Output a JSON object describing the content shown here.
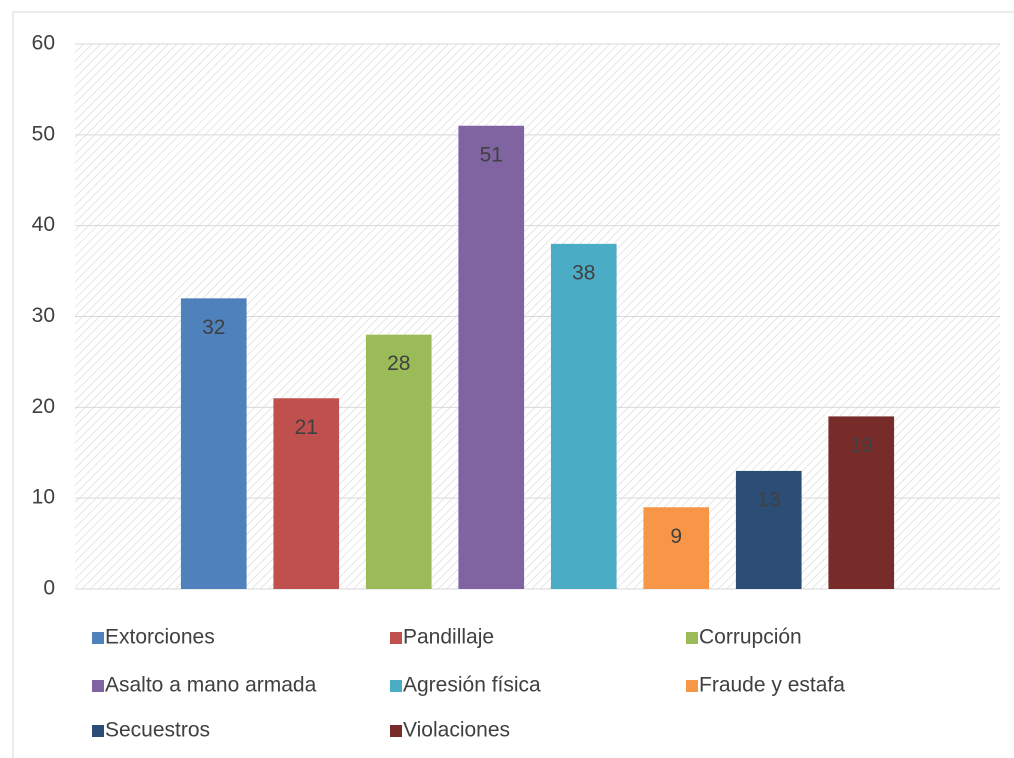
{
  "chart_data": {
    "type": "bar",
    "categories": [
      null
    ],
    "series": [
      {
        "name": "Extorciones",
        "color": "#4f81bd",
        "values": [
          32
        ]
      },
      {
        "name": "Pandillaje",
        "color": "#c0504d",
        "values": [
          21
        ]
      },
      {
        "name": "Corrupción",
        "color": "#9bbb59",
        "values": [
          28
        ]
      },
      {
        "name": "Asalto a mano armada",
        "color": "#8064a2",
        "values": [
          51
        ]
      },
      {
        "name": "Agresión física",
        "color": "#4bacc6",
        "values": [
          38
        ]
      },
      {
        "name": "Fraude y estafa",
        "color": "#f79646",
        "values": [
          9
        ]
      },
      {
        "name": "Secuestros",
        "color": "#2c4d75",
        "values": [
          13
        ]
      },
      {
        "name": "Violaciones",
        "color": "#772c2a",
        "values": [
          19
        ]
      }
    ],
    "ylim": [
      0,
      60
    ],
    "yticks": [
      0,
      10,
      20,
      30,
      40,
      50,
      60
    ],
    "grid": true,
    "legend": "bottom"
  }
}
